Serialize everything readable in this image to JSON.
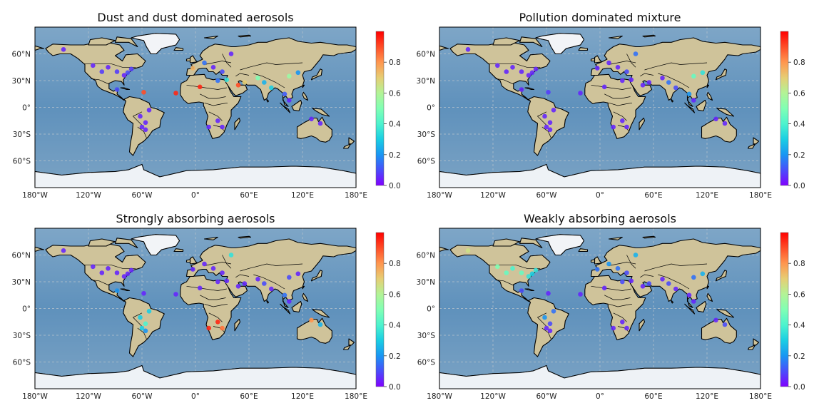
{
  "colorscale": [
    "#8000ff",
    "#4a4dfb",
    "#1996f3",
    "#1acee3",
    "#4df3ce",
    "#80ffb4",
    "#b3f396",
    "#e6ce74",
    "#ff964f",
    "#ff4d27",
    "#ff0000"
  ],
  "ocean_color": "#6f9cc2",
  "land_color": "#cfc39a",
  "longitude_ticks": [
    "180°W",
    "120°W",
    "60°W",
    "0°",
    "60°E",
    "120°E",
    "180°E"
  ],
  "latitude_ticks": [
    "60°N",
    "30°N",
    "0°",
    "30°S",
    "60°S"
  ],
  "colorbar_ticks": [
    "0.0",
    "0.2",
    "0.4",
    "0.6",
    "0.8"
  ],
  "colorbar_range": [
    0,
    1
  ],
  "panels": [
    {
      "title": "Dust and dust dominated aerosols",
      "sites": [
        {
          "lon": -148,
          "lat": 65,
          "v": 0.05
        },
        {
          "lon": -115,
          "lat": 47,
          "v": 0.05
        },
        {
          "lon": -105,
          "lat": 40,
          "v": 0.08
        },
        {
          "lon": -98,
          "lat": 45,
          "v": 0.05
        },
        {
          "lon": -88,
          "lat": 40,
          "v": 0.08
        },
        {
          "lon": -80,
          "lat": 36,
          "v": 0.05
        },
        {
          "lon": -76,
          "lat": 39,
          "v": 0.1
        },
        {
          "lon": -72,
          "lat": 43,
          "v": 0.08
        },
        {
          "lon": -88,
          "lat": 20,
          "v": 0.1
        },
        {
          "lon": -58,
          "lat": 17,
          "v": 0.9
        },
        {
          "lon": -22,
          "lat": 16,
          "v": 0.95
        },
        {
          "lon": -3,
          "lat": 44,
          "v": 0.75
        },
        {
          "lon": 10,
          "lat": 50,
          "v": 0.15
        },
        {
          "lon": 20,
          "lat": 45,
          "v": 0.05
        },
        {
          "lon": 40,
          "lat": 60,
          "v": 0.05
        },
        {
          "lon": 30,
          "lat": 40,
          "v": 0.1
        },
        {
          "lon": 35,
          "lat": 31,
          "v": 0.35
        },
        {
          "lon": 5,
          "lat": 23,
          "v": 0.95
        },
        {
          "lon": 25,
          "lat": 30,
          "v": 0.15
        },
        {
          "lon": 48,
          "lat": 25,
          "v": 0.9
        },
        {
          "lon": 55,
          "lat": 28,
          "v": 0.7
        },
        {
          "lon": 70,
          "lat": 33,
          "v": 0.5
        },
        {
          "lon": 77,
          "lat": 28,
          "v": 0.25
        },
        {
          "lon": 85,
          "lat": 22,
          "v": 0.3
        },
        {
          "lon": 105,
          "lat": 35,
          "v": 0.55
        },
        {
          "lon": 115,
          "lat": 39,
          "v": 0.2
        },
        {
          "lon": 100,
          "lat": 15,
          "v": 0.12
        },
        {
          "lon": 105,
          "lat": 8,
          "v": 0.05
        },
        {
          "lon": -52,
          "lat": -3,
          "v": 0.05
        },
        {
          "lon": -62,
          "lat": -10,
          "v": 0.05
        },
        {
          "lon": -56,
          "lat": -17,
          "v": 0.05
        },
        {
          "lon": -60,
          "lat": -22,
          "v": 0.05
        },
        {
          "lon": -56,
          "lat": -25,
          "v": 0.05
        },
        {
          "lon": 15,
          "lat": -22,
          "v": 0.05
        },
        {
          "lon": 25,
          "lat": -15,
          "v": 0.05
        },
        {
          "lon": 30,
          "lat": -22,
          "v": 0.05
        },
        {
          "lon": 130,
          "lat": -13,
          "v": 0.05
        },
        {
          "lon": 140,
          "lat": -18,
          "v": 0.05
        }
      ]
    },
    {
      "title": "Pollution dominated mixture",
      "sites": [
        {
          "lon": -148,
          "lat": 65,
          "v": 0.05
        },
        {
          "lon": -115,
          "lat": 47,
          "v": 0.05
        },
        {
          "lon": -105,
          "lat": 40,
          "v": 0.05
        },
        {
          "lon": -98,
          "lat": 45,
          "v": 0.05
        },
        {
          "lon": -88,
          "lat": 40,
          "v": 0.05
        },
        {
          "lon": -80,
          "lat": 36,
          "v": 0.05
        },
        {
          "lon": -76,
          "lat": 39,
          "v": 0.05
        },
        {
          "lon": -72,
          "lat": 43,
          "v": 0.05
        },
        {
          "lon": -88,
          "lat": 20,
          "v": 0.05
        },
        {
          "lon": -58,
          "lat": 17,
          "v": 0.08
        },
        {
          "lon": -22,
          "lat": 16,
          "v": 0.05
        },
        {
          "lon": -3,
          "lat": 44,
          "v": 0.05
        },
        {
          "lon": 10,
          "lat": 50,
          "v": 0.05
        },
        {
          "lon": 20,
          "lat": 45,
          "v": 0.05
        },
        {
          "lon": 40,
          "lat": 60,
          "v": 0.15
        },
        {
          "lon": 30,
          "lat": 40,
          "v": 0.1
        },
        {
          "lon": 35,
          "lat": 31,
          "v": 0.05
        },
        {
          "lon": 5,
          "lat": 23,
          "v": 0.05
        },
        {
          "lon": 25,
          "lat": 30,
          "v": 0.05
        },
        {
          "lon": 48,
          "lat": 25,
          "v": 0.05
        },
        {
          "lon": 55,
          "lat": 28,
          "v": 0.05
        },
        {
          "lon": 70,
          "lat": 33,
          "v": 0.05
        },
        {
          "lon": 77,
          "lat": 28,
          "v": 0.15
        },
        {
          "lon": 85,
          "lat": 22,
          "v": 0.1
        },
        {
          "lon": 105,
          "lat": 35,
          "v": 0.45
        },
        {
          "lon": 115,
          "lat": 39,
          "v": 0.35
        },
        {
          "lon": 100,
          "lat": 15,
          "v": 0.2
        },
        {
          "lon": 105,
          "lat": 8,
          "v": 0.05
        },
        {
          "lon": -52,
          "lat": -3,
          "v": 0.05
        },
        {
          "lon": -62,
          "lat": -10,
          "v": 0.05
        },
        {
          "lon": -56,
          "lat": -17,
          "v": 0.05
        },
        {
          "lon": -60,
          "lat": -22,
          "v": 0.05
        },
        {
          "lon": -56,
          "lat": -25,
          "v": 0.05
        },
        {
          "lon": 15,
          "lat": -22,
          "v": 0.05
        },
        {
          "lon": 25,
          "lat": -15,
          "v": 0.05
        },
        {
          "lon": 30,
          "lat": -22,
          "v": 0.05
        },
        {
          "lon": 130,
          "lat": -13,
          "v": 0.05
        },
        {
          "lon": 140,
          "lat": -18,
          "v": 0.05
        }
      ]
    },
    {
      "title": "Strongly absorbing aerosols",
      "sites": [
        {
          "lon": -148,
          "lat": 65,
          "v": 0.05
        },
        {
          "lon": -115,
          "lat": 47,
          "v": 0.05
        },
        {
          "lon": -105,
          "lat": 40,
          "v": 0.05
        },
        {
          "lon": -98,
          "lat": 45,
          "v": 0.05
        },
        {
          "lon": -88,
          "lat": 40,
          "v": 0.05
        },
        {
          "lon": -80,
          "lat": 36,
          "v": 0.05
        },
        {
          "lon": -76,
          "lat": 39,
          "v": 0.05
        },
        {
          "lon": -72,
          "lat": 43,
          "v": 0.05
        },
        {
          "lon": -88,
          "lat": 20,
          "v": 0.2
        },
        {
          "lon": -58,
          "lat": 17,
          "v": 0.05
        },
        {
          "lon": -22,
          "lat": 16,
          "v": 0.05
        },
        {
          "lon": -3,
          "lat": 44,
          "v": 0.05
        },
        {
          "lon": 10,
          "lat": 50,
          "v": 0.05
        },
        {
          "lon": 20,
          "lat": 45,
          "v": 0.05
        },
        {
          "lon": 40,
          "lat": 60,
          "v": 0.35
        },
        {
          "lon": 30,
          "lat": 40,
          "v": 0.05
        },
        {
          "lon": 35,
          "lat": 31,
          "v": 0.05
        },
        {
          "lon": 5,
          "lat": 23,
          "v": 0.05
        },
        {
          "lon": 25,
          "lat": 30,
          "v": 0.05
        },
        {
          "lon": 48,
          "lat": 25,
          "v": 0.05
        },
        {
          "lon": 55,
          "lat": 28,
          "v": 0.05
        },
        {
          "lon": 70,
          "lat": 33,
          "v": 0.05
        },
        {
          "lon": 77,
          "lat": 28,
          "v": 0.1
        },
        {
          "lon": 85,
          "lat": 22,
          "v": 0.05
        },
        {
          "lon": 105,
          "lat": 35,
          "v": 0.1
        },
        {
          "lon": 115,
          "lat": 39,
          "v": 0.05
        },
        {
          "lon": 100,
          "lat": 15,
          "v": 0.15
        },
        {
          "lon": 105,
          "lat": 8,
          "v": 0.05
        },
        {
          "lon": -52,
          "lat": -3,
          "v": 0.3
        },
        {
          "lon": -62,
          "lat": -10,
          "v": 0.3
        },
        {
          "lon": -56,
          "lat": -17,
          "v": 0.4
        },
        {
          "lon": -60,
          "lat": -22,
          "v": 0.3
        },
        {
          "lon": -56,
          "lat": -25,
          "v": 0.2
        },
        {
          "lon": 15,
          "lat": -22,
          "v": 0.95
        },
        {
          "lon": 25,
          "lat": -15,
          "v": 0.95
        },
        {
          "lon": 30,
          "lat": -22,
          "v": 0.85
        },
        {
          "lon": 130,
          "lat": -13,
          "v": 0.8
        },
        {
          "lon": 140,
          "lat": -18,
          "v": 0.25
        }
      ]
    },
    {
      "title": "Weakly absorbing aerosols",
      "sites": [
        {
          "lon": -148,
          "lat": 65,
          "v": 0.65
        },
        {
          "lon": -115,
          "lat": 47,
          "v": 0.5
        },
        {
          "lon": -105,
          "lat": 40,
          "v": 0.45
        },
        {
          "lon": -98,
          "lat": 45,
          "v": 0.4
        },
        {
          "lon": -88,
          "lat": 40,
          "v": 0.45
        },
        {
          "lon": -80,
          "lat": 36,
          "v": 0.35
        },
        {
          "lon": -76,
          "lat": 39,
          "v": 0.3
        },
        {
          "lon": -72,
          "lat": 43,
          "v": 0.35
        },
        {
          "lon": -88,
          "lat": 20,
          "v": 0.1
        },
        {
          "lon": -58,
          "lat": 17,
          "v": 0.05
        },
        {
          "lon": -22,
          "lat": 16,
          "v": 0.05
        },
        {
          "lon": -3,
          "lat": 44,
          "v": 0.15
        },
        {
          "lon": 10,
          "lat": 50,
          "v": 0.2
        },
        {
          "lon": 20,
          "lat": 45,
          "v": 0.15
        },
        {
          "lon": 40,
          "lat": 60,
          "v": 0.25
        },
        {
          "lon": 30,
          "lat": 40,
          "v": 0.1
        },
        {
          "lon": 35,
          "lat": 31,
          "v": 0.05
        },
        {
          "lon": 5,
          "lat": 23,
          "v": 0.05
        },
        {
          "lon": 25,
          "lat": 30,
          "v": 0.1
        },
        {
          "lon": 48,
          "lat": 25,
          "v": 0.05
        },
        {
          "lon": 55,
          "lat": 28,
          "v": 0.1
        },
        {
          "lon": 70,
          "lat": 33,
          "v": 0.05
        },
        {
          "lon": 77,
          "lat": 28,
          "v": 0.1
        },
        {
          "lon": 85,
          "lat": 22,
          "v": 0.05
        },
        {
          "lon": 105,
          "lat": 35,
          "v": 0.15
        },
        {
          "lon": 115,
          "lat": 39,
          "v": 0.25
        },
        {
          "lon": 100,
          "lat": 15,
          "v": 0.05
        },
        {
          "lon": 105,
          "lat": 8,
          "v": 0.05
        },
        {
          "lon": -52,
          "lat": -3,
          "v": 0.15
        },
        {
          "lon": -62,
          "lat": -10,
          "v": 0.2
        },
        {
          "lon": -56,
          "lat": -17,
          "v": 0.1
        },
        {
          "lon": -60,
          "lat": -22,
          "v": 0.05
        },
        {
          "lon": -56,
          "lat": -25,
          "v": 0.05
        },
        {
          "lon": 15,
          "lat": -22,
          "v": 0.05
        },
        {
          "lon": 25,
          "lat": -15,
          "v": 0.05
        },
        {
          "lon": 30,
          "lat": -22,
          "v": 0.05
        },
        {
          "lon": 130,
          "lat": -13,
          "v": 0.05
        },
        {
          "lon": 140,
          "lat": -18,
          "v": 0.1
        }
      ]
    }
  ]
}
